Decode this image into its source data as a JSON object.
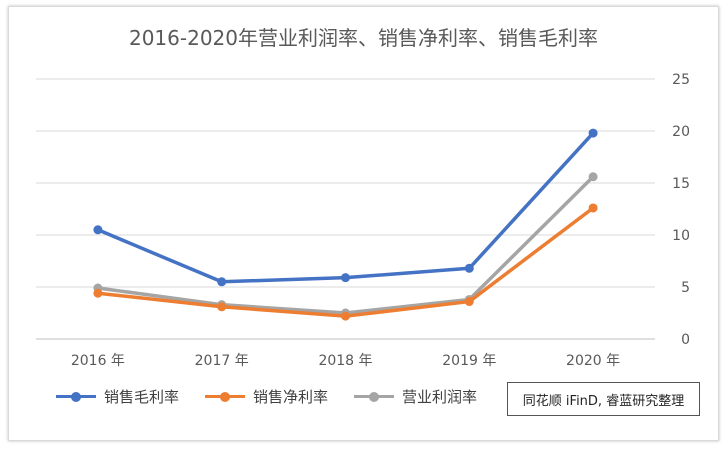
{
  "chart_data": {
    "type": "line",
    "title": "2016-2020年营业利润率、销售净利率、销售毛利率",
    "categories": [
      "2016 年",
      "2017 年",
      "2018 年",
      "2019 年",
      "2020 年"
    ],
    "ylim": [
      0,
      25
    ],
    "yticks": [
      0,
      5,
      10,
      15,
      20,
      25
    ],
    "grid": true,
    "y_axis_side": "right",
    "legend_position": "bottom-left",
    "series": [
      {
        "name": "销售毛利率",
        "color": "#4472C4",
        "values": [
          10.5,
          5.5,
          5.9,
          6.8,
          19.8
        ]
      },
      {
        "name": "销售净利率",
        "color": "#ED7D31",
        "values": [
          4.4,
          3.1,
          2.2,
          3.6,
          12.6
        ]
      },
      {
        "name": "营业利润率",
        "color": "#A5A5A5",
        "values": [
          4.9,
          3.3,
          2.5,
          3.8,
          15.6
        ]
      }
    ]
  },
  "source_note": "同花顺 iFinD, 睿蓝研究整理"
}
